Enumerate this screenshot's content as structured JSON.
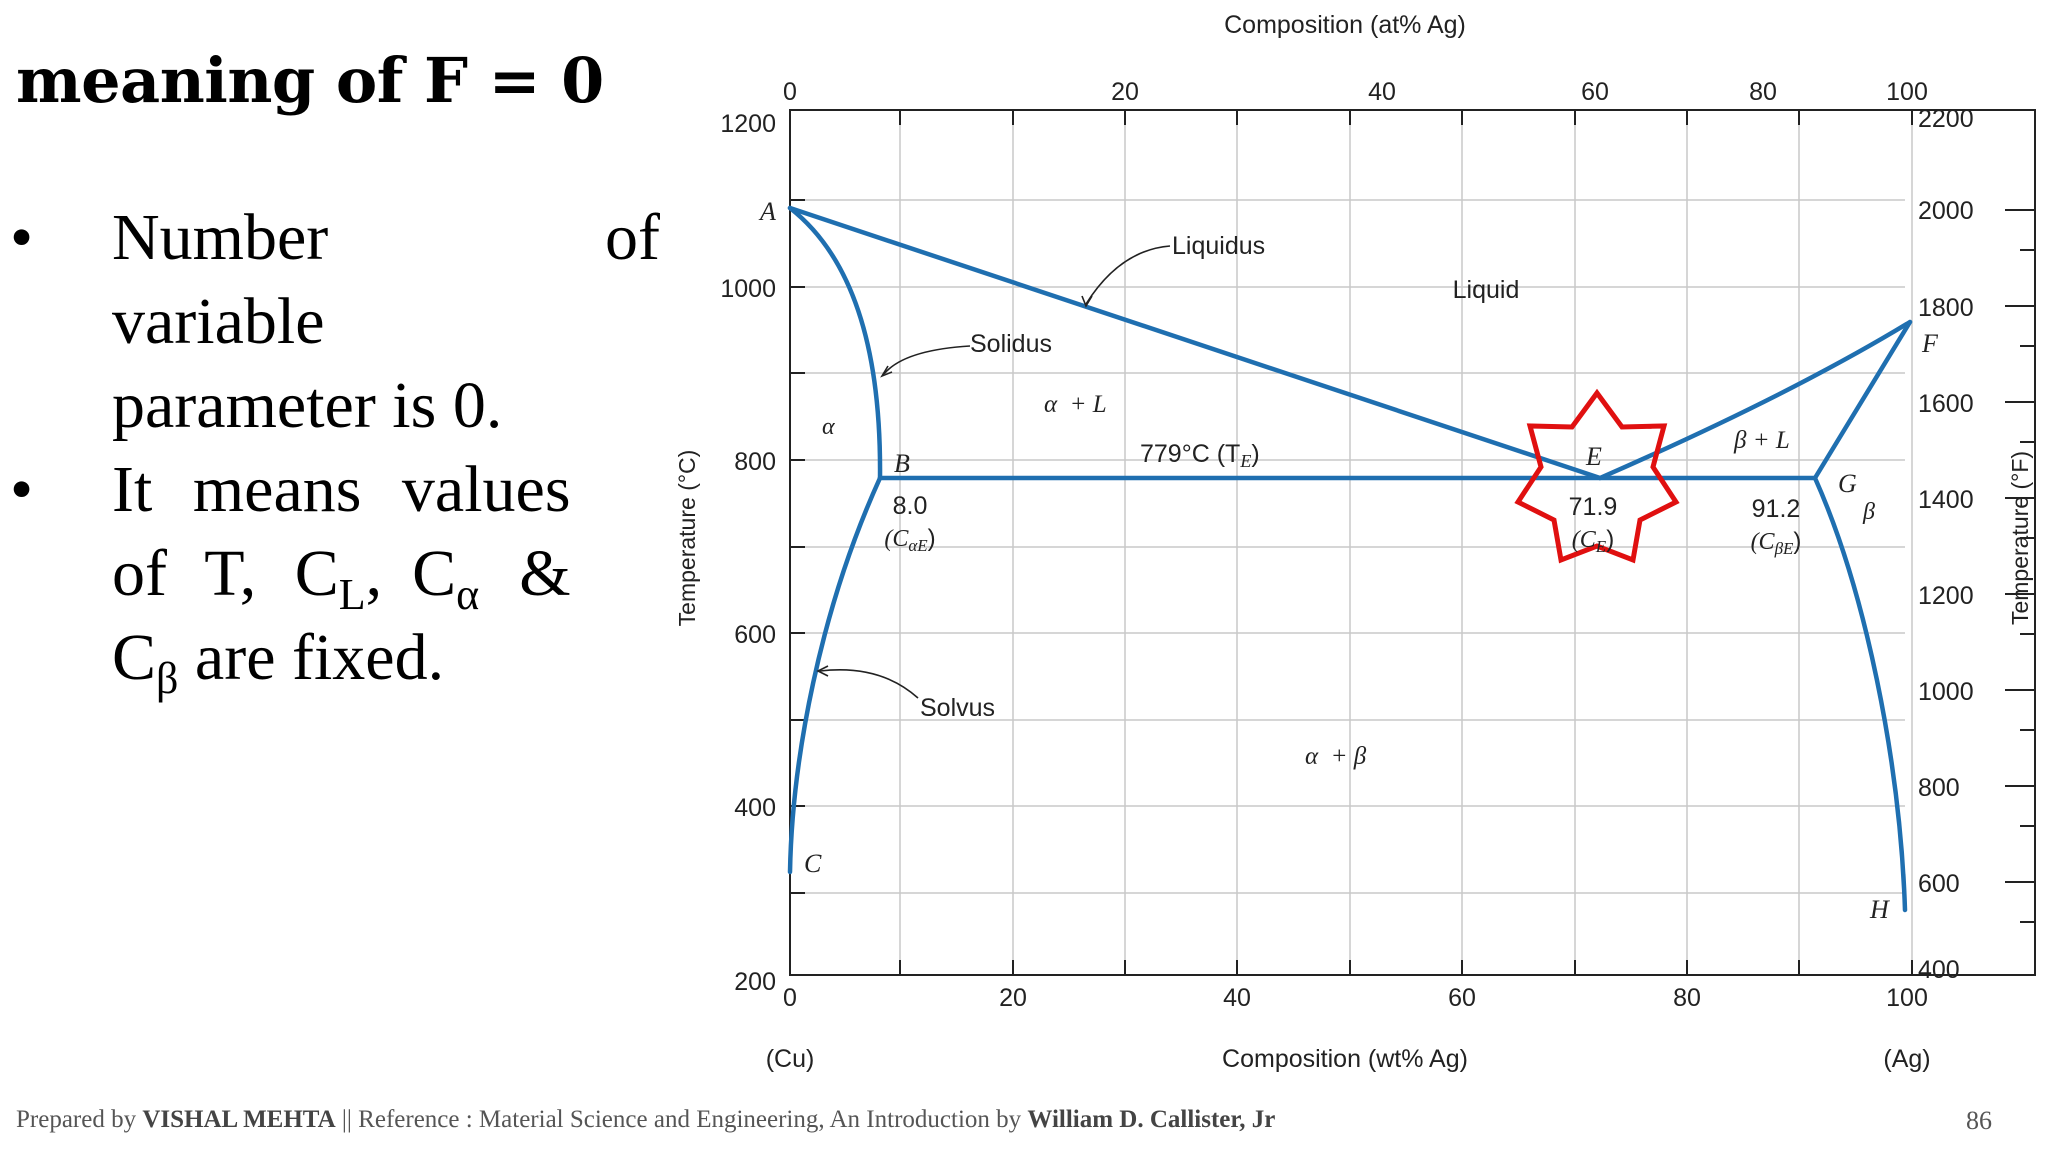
{
  "slide": {
    "title": "meaning of F = 0",
    "bullets": {
      "b1": [
        "Number",
        "of",
        "variable",
        "parameter is 0."
      ],
      "b2": {
        "line1": "It means values",
        "line2a": "of T, C",
        "sub_L": "L",
        "comma1": ",",
        "c_alpha": "C",
        "sub_alpha": "α",
        "amp": "&",
        "line3a": "C",
        "sub_beta": "β",
        "line3b": " are fixed."
      }
    },
    "bullet_symbol": "•"
  },
  "diagram": {
    "top_axis_title": "Composition (at% Ag)",
    "bottom_axis_title": "Composition (wt% Ag)",
    "left_axis_title": "Temperature (°C)",
    "right_axis_title": "Temperature (°F)",
    "top_ticks": [
      "0",
      "20",
      "40",
      "60",
      "80",
      "100"
    ],
    "bottom_ticks": [
      "0",
      "20",
      "40",
      "60",
      "80",
      "100"
    ],
    "left_ticks": [
      "1200",
      "1000",
      "800",
      "600",
      "400",
      "200"
    ],
    "right_ticks": [
      "2200",
      "2000",
      "1800",
      "1600",
      "1400",
      "1200",
      "1000",
      "800",
      "600",
      "400"
    ],
    "cu_label": "(Cu)",
    "ag_label": "(Ag)",
    "point_labels": {
      "A": "A",
      "B": "B",
      "C": "C",
      "E": "E",
      "F": "F",
      "G": "G",
      "H": "H"
    },
    "regions": {
      "liquid": "Liquid",
      "alpha": "α",
      "beta": "β",
      "alpha_l": "α  + L",
      "beta_l": "β + L",
      "alpha_beta": "α  + β"
    },
    "annotations": {
      "liquidus": "Liquidus",
      "solidus": "Solidus",
      "solvus": "Solvus",
      "eutectic_temp": "779°C (T",
      "eutectic_temp_sub": "E",
      "c_alpha_e_val": "8.0",
      "c_alpha_e_sym": "(C",
      "c_alpha_e_sub": "αE",
      "c_e_val": "71.9",
      "c_e_sym": "(C",
      "c_e_sub": "E",
      "c_beta_e_val": "91.2",
      "c_beta_e_sym": "(C",
      "c_beta_e_sub": "βE",
      "close_paren": ")"
    },
    "colors": {
      "curve": "#1f6fb0",
      "grid": "#c9c9c9",
      "star": "#e01010"
    }
  },
  "footer": {
    "prefix": "Prepared by ",
    "author": "VISHAL MEHTA",
    "middle": " || Reference : Material Science and Engineering, An Introduction by ",
    "book_author": "William D. Callister, Jr",
    "page": "86"
  }
}
